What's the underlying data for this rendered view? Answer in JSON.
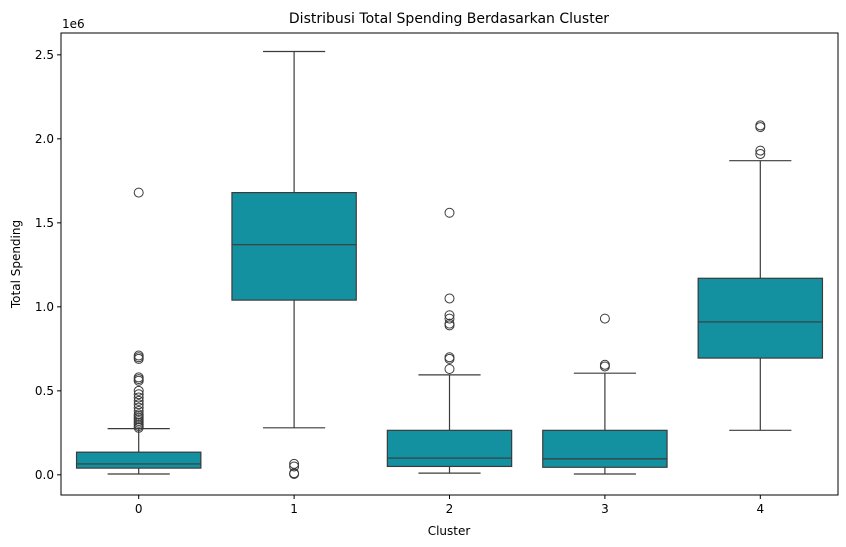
{
  "chart_data": {
    "type": "box",
    "title": "Distribusi Total Spending Berdasarkan Cluster",
    "xlabel": "Cluster",
    "ylabel": "Total Spending",
    "offset_label": "1e6",
    "ylim": [
      -0.12,
      2.63
    ],
    "yticks": [
      0.0,
      0.5,
      1.0,
      1.5,
      2.0,
      2.5
    ],
    "ytick_labels": [
      "0.0",
      "0.5",
      "1.0",
      "1.5",
      "2.0",
      "2.5"
    ],
    "categories": [
      "0",
      "1",
      "2",
      "3",
      "4"
    ],
    "box_color": "#1491a0",
    "line_color": "#3b3b3b",
    "boxes": [
      {
        "category": "0",
        "whisker_low": 0.005,
        "q1": 0.04,
        "median": 0.065,
        "q3": 0.135,
        "whisker_high": 0.275,
        "outliers": [
          1.68,
          0.71,
          0.7,
          0.69,
          0.58,
          0.57,
          0.56,
          0.5,
          0.48,
          0.46,
          0.44,
          0.42,
          0.4,
          0.38,
          0.36,
          0.35,
          0.34,
          0.33,
          0.32,
          0.31,
          0.3,
          0.29,
          0.28
        ]
      },
      {
        "category": "1",
        "whisker_low": 0.28,
        "q1": 1.04,
        "median": 1.37,
        "q3": 1.68,
        "whisker_high": 2.52,
        "outliers": [
          0.065,
          0.05,
          0.01,
          0.005
        ]
      },
      {
        "category": "2",
        "whisker_low": 0.01,
        "q1": 0.05,
        "median": 0.1,
        "q3": 0.265,
        "whisker_high": 0.595,
        "outliers": [
          1.56,
          1.05,
          0.95,
          0.93,
          0.9,
          0.89,
          0.7,
          0.69,
          0.63
        ]
      },
      {
        "category": "3",
        "whisker_low": 0.005,
        "q1": 0.045,
        "median": 0.095,
        "q3": 0.265,
        "whisker_high": 0.605,
        "outliers": [
          0.93,
          0.655,
          0.645
        ]
      },
      {
        "category": "4",
        "whisker_low": 0.265,
        "q1": 0.695,
        "median": 0.91,
        "q3": 1.17,
        "whisker_high": 1.87,
        "outliers": [
          2.08,
          2.07,
          1.93,
          1.91
        ]
      }
    ]
  }
}
